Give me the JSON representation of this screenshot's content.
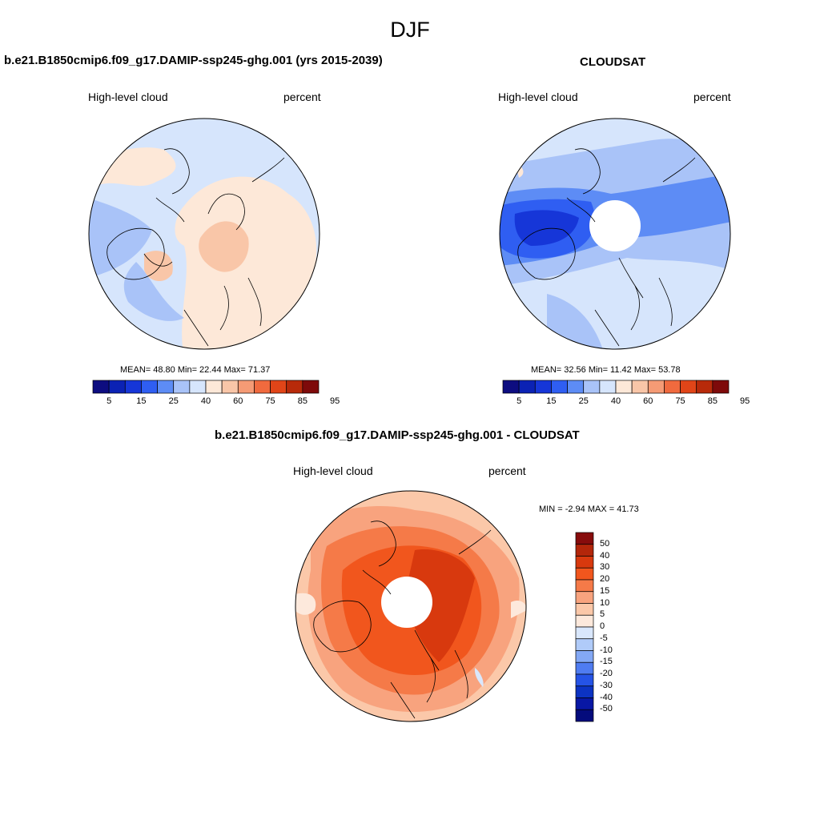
{
  "header": {
    "title": "DJF"
  },
  "panels": {
    "model": {
      "title": "b.e21.B1850cmip6.f09_g17.DAMIP-ssp245-ghg.001 (yrs 2015-2039)",
      "left_label": "High-level cloud",
      "right_label": "percent",
      "stats": "MEAN=  48.80  Min=  22.44  Max=  71.37"
    },
    "obs": {
      "title": "CLOUDSAT",
      "left_label": "High-level cloud",
      "right_label": "percent",
      "stats": "MEAN=  32.56  Min=  11.42  Max=  53.78"
    },
    "diff": {
      "title": "b.e21.B1850cmip6.f09_g17.DAMIP-ssp245-ghg.001 - CLOUDSAT",
      "left_label": "High-level cloud",
      "right_label": "percent",
      "stats": "MIN =  -2.94 MAX =  41.73"
    }
  },
  "colorbars": {
    "abs": {
      "colors": [
        "#0d0d80",
        "#0b22b4",
        "#1636d8",
        "#2f5ef2",
        "#5d8cf5",
        "#a9c3f8",
        "#d6e5fc",
        "#fde8d8",
        "#f9c6a8",
        "#f59b75",
        "#f06a3e",
        "#e14518",
        "#b82a0a",
        "#7e0a0a"
      ],
      "labels": [
        "5",
        "15",
        "25",
        "40",
        "60",
        "75",
        "85",
        "95"
      ]
    },
    "diff": {
      "colors": [
        "#870c0c",
        "#b3260a",
        "#d8390e",
        "#f1561d",
        "#f57a48",
        "#f8a37e",
        "#fbc8a9",
        "#fde9dc",
        "#d9e7fc",
        "#b0cbf9",
        "#83a8f5",
        "#4f7cf1",
        "#2553e6",
        "#0c33c3",
        "#0817a4",
        "#040b7c"
      ],
      "labels": [
        "50",
        "40",
        "30",
        "20",
        "15",
        "10",
        "5",
        "0",
        "-5",
        "-10",
        "-15",
        "-20",
        "-30",
        "-40",
        "-50"
      ]
    }
  }
}
